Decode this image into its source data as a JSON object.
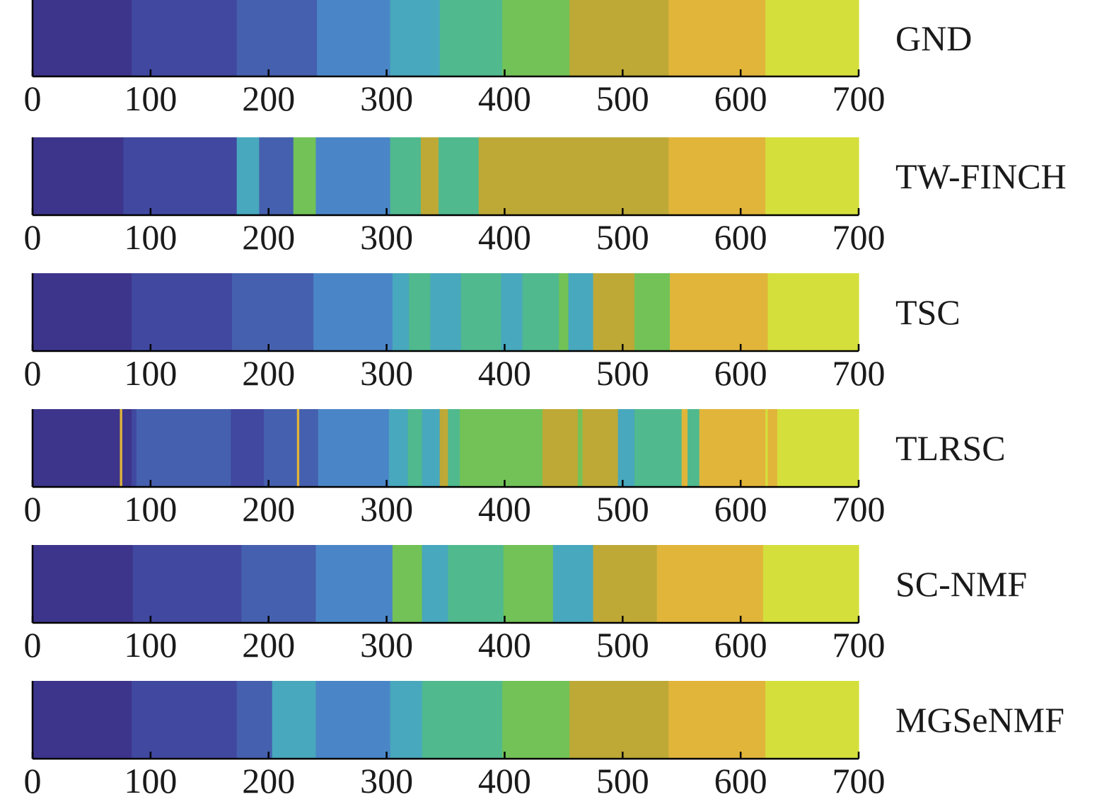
{
  "chart_data": {
    "type": "segmented-bar",
    "x_ticks": [
      0,
      100,
      200,
      300,
      400,
      500,
      600,
      700
    ],
    "xlim": [
      0,
      700
    ],
    "palette": {
      "c1": "#3d358b",
      "c2": "#4048a0",
      "c3": "#4560ae",
      "c4": "#4a86c7",
      "c5": "#48a8bd",
      "c6": "#50b98e",
      "c7": "#72c257",
      "c8": "#bea936",
      "c9": "#e1b53a",
      "c10": "#d4df3c"
    },
    "rows": [
      {
        "name": "GND",
        "segments": [
          {
            "start": 0,
            "end": 84,
            "color": "c1"
          },
          {
            "start": 84,
            "end": 173,
            "color": "c2"
          },
          {
            "start": 173,
            "end": 241,
            "color": "c3"
          },
          {
            "start": 241,
            "end": 303,
            "color": "c4"
          },
          {
            "start": 303,
            "end": 345,
            "color": "c5"
          },
          {
            "start": 345,
            "end": 398,
            "color": "c6"
          },
          {
            "start": 398,
            "end": 455,
            "color": "c7"
          },
          {
            "start": 455,
            "end": 539,
            "color": "c8"
          },
          {
            "start": 539,
            "end": 621,
            "color": "c9"
          },
          {
            "start": 621,
            "end": 700,
            "color": "c10"
          }
        ]
      },
      {
        "name": "TW-FINCH",
        "segments": [
          {
            "start": 0,
            "end": 77,
            "color": "c1"
          },
          {
            "start": 77,
            "end": 173,
            "color": "c2"
          },
          {
            "start": 173,
            "end": 192,
            "color": "c5"
          },
          {
            "start": 192,
            "end": 221,
            "color": "c3"
          },
          {
            "start": 221,
            "end": 240,
            "color": "c7"
          },
          {
            "start": 240,
            "end": 303,
            "color": "c4"
          },
          {
            "start": 303,
            "end": 329,
            "color": "c6"
          },
          {
            "start": 329,
            "end": 344,
            "color": "c8"
          },
          {
            "start": 344,
            "end": 378,
            "color": "c6"
          },
          {
            "start": 378,
            "end": 539,
            "color": "c8"
          },
          {
            "start": 539,
            "end": 621,
            "color": "c9"
          },
          {
            "start": 621,
            "end": 700,
            "color": "c10"
          }
        ]
      },
      {
        "name": "TSC",
        "segments": [
          {
            "start": 0,
            "end": 84,
            "color": "c1"
          },
          {
            "start": 84,
            "end": 169,
            "color": "c2"
          },
          {
            "start": 169,
            "end": 238,
            "color": "c3"
          },
          {
            "start": 238,
            "end": 305,
            "color": "c4"
          },
          {
            "start": 305,
            "end": 319,
            "color": "c5"
          },
          {
            "start": 319,
            "end": 337,
            "color": "c6"
          },
          {
            "start": 337,
            "end": 363,
            "color": "c5"
          },
          {
            "start": 363,
            "end": 397,
            "color": "c6"
          },
          {
            "start": 397,
            "end": 415,
            "color": "c5"
          },
          {
            "start": 415,
            "end": 446,
            "color": "c6"
          },
          {
            "start": 446,
            "end": 454,
            "color": "c7"
          },
          {
            "start": 454,
            "end": 475,
            "color": "c5"
          },
          {
            "start": 475,
            "end": 510,
            "color": "c8"
          },
          {
            "start": 510,
            "end": 540,
            "color": "c7"
          },
          {
            "start": 540,
            "end": 623,
            "color": "c9"
          },
          {
            "start": 623,
            "end": 700,
            "color": "c10"
          }
        ]
      },
      {
        "name": "TLRSC",
        "segments": [
          {
            "start": 0,
            "end": 74,
            "color": "c1"
          },
          {
            "start": 74,
            "end": 76,
            "color": "c9"
          },
          {
            "start": 76,
            "end": 84,
            "color": "c1"
          },
          {
            "start": 84,
            "end": 88,
            "color": "c2"
          },
          {
            "start": 88,
            "end": 168,
            "color": "c3"
          },
          {
            "start": 168,
            "end": 196,
            "color": "c2"
          },
          {
            "start": 196,
            "end": 224,
            "color": "c3"
          },
          {
            "start": 224,
            "end": 226,
            "color": "c9"
          },
          {
            "start": 226,
            "end": 242,
            "color": "c3"
          },
          {
            "start": 242,
            "end": 302,
            "color": "c4"
          },
          {
            "start": 302,
            "end": 318,
            "color": "c5"
          },
          {
            "start": 318,
            "end": 330,
            "color": "c6"
          },
          {
            "start": 330,
            "end": 345,
            "color": "c5"
          },
          {
            "start": 345,
            "end": 352,
            "color": "c8"
          },
          {
            "start": 352,
            "end": 362,
            "color": "c6"
          },
          {
            "start": 362,
            "end": 432,
            "color": "c7"
          },
          {
            "start": 432,
            "end": 462,
            "color": "c8"
          },
          {
            "start": 462,
            "end": 466,
            "color": "c7"
          },
          {
            "start": 466,
            "end": 496,
            "color": "c8"
          },
          {
            "start": 496,
            "end": 510,
            "color": "c5"
          },
          {
            "start": 510,
            "end": 550,
            "color": "c6"
          },
          {
            "start": 550,
            "end": 555,
            "color": "c9"
          },
          {
            "start": 555,
            "end": 565,
            "color": "c6"
          },
          {
            "start": 565,
            "end": 621,
            "color": "c9"
          },
          {
            "start": 621,
            "end": 623,
            "color": "c10"
          },
          {
            "start": 623,
            "end": 631,
            "color": "c9"
          },
          {
            "start": 631,
            "end": 700,
            "color": "c10"
          }
        ]
      },
      {
        "name": "SC-NMF",
        "segments": [
          {
            "start": 0,
            "end": 85,
            "color": "c1"
          },
          {
            "start": 85,
            "end": 177,
            "color": "c2"
          },
          {
            "start": 177,
            "end": 240,
            "color": "c3"
          },
          {
            "start": 240,
            "end": 305,
            "color": "c4"
          },
          {
            "start": 305,
            "end": 330,
            "color": "c7"
          },
          {
            "start": 330,
            "end": 352,
            "color": "c5"
          },
          {
            "start": 352,
            "end": 399,
            "color": "c6"
          },
          {
            "start": 399,
            "end": 441,
            "color": "c7"
          },
          {
            "start": 441,
            "end": 475,
            "color": "c5"
          },
          {
            "start": 475,
            "end": 529,
            "color": "c8"
          },
          {
            "start": 529,
            "end": 619,
            "color": "c9"
          },
          {
            "start": 619,
            "end": 700,
            "color": "c10"
          }
        ]
      },
      {
        "name": "MGSeNMF",
        "segments": [
          {
            "start": 0,
            "end": 84,
            "color": "c1"
          },
          {
            "start": 84,
            "end": 173,
            "color": "c2"
          },
          {
            "start": 173,
            "end": 203,
            "color": "c3"
          },
          {
            "start": 203,
            "end": 240,
            "color": "c5"
          },
          {
            "start": 240,
            "end": 303,
            "color": "c4"
          },
          {
            "start": 303,
            "end": 330,
            "color": "c5"
          },
          {
            "start": 330,
            "end": 398,
            "color": "c6"
          },
          {
            "start": 398,
            "end": 455,
            "color": "c7"
          },
          {
            "start": 455,
            "end": 539,
            "color": "c8"
          },
          {
            "start": 539,
            "end": 621,
            "color": "c9"
          },
          {
            "start": 621,
            "end": 700,
            "color": "c10"
          }
        ]
      }
    ]
  }
}
